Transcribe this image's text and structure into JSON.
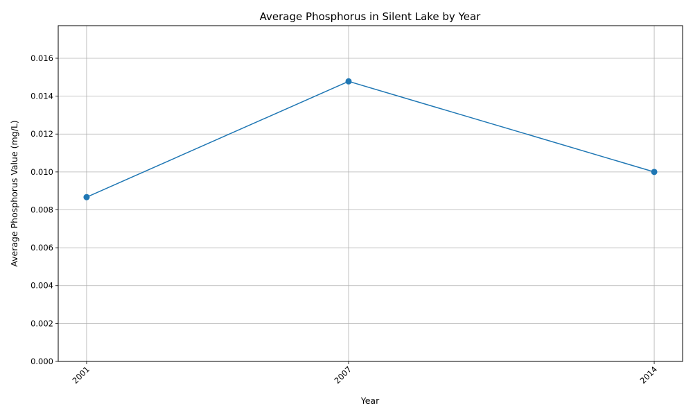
{
  "chart_data": {
    "type": "line",
    "title": "Average Phosphorus in Silent Lake by Year",
    "xlabel": "Year",
    "ylabel": "Average Phosphorus Value (mg/L)",
    "x": [
      2001,
      2007,
      2014
    ],
    "x_tick_labels": [
      "2001",
      "2007",
      "2014"
    ],
    "xlim": [
      2000.35,
      2014.65
    ],
    "series": [
      {
        "values": [
          0.00867,
          0.01478,
          0.01
        ],
        "color": "#1f77b4",
        "marker": "circle"
      }
    ],
    "ylim": [
      0,
      0.01772
    ],
    "y_ticks": [
      0,
      0.002,
      0.004,
      0.006,
      0.008,
      0.01,
      0.012,
      0.014,
      0.016
    ],
    "y_tick_labels": [
      "0.000",
      "0.002",
      "0.004",
      "0.006",
      "0.008",
      "0.010",
      "0.012",
      "0.014",
      "0.016"
    ],
    "grid": true,
    "legend": "none",
    "x_tick_rotation": "45 degrees",
    "colors": {
      "line": "#1f77b4",
      "grid": "#b0b0b0",
      "axes": "#000000"
    }
  }
}
